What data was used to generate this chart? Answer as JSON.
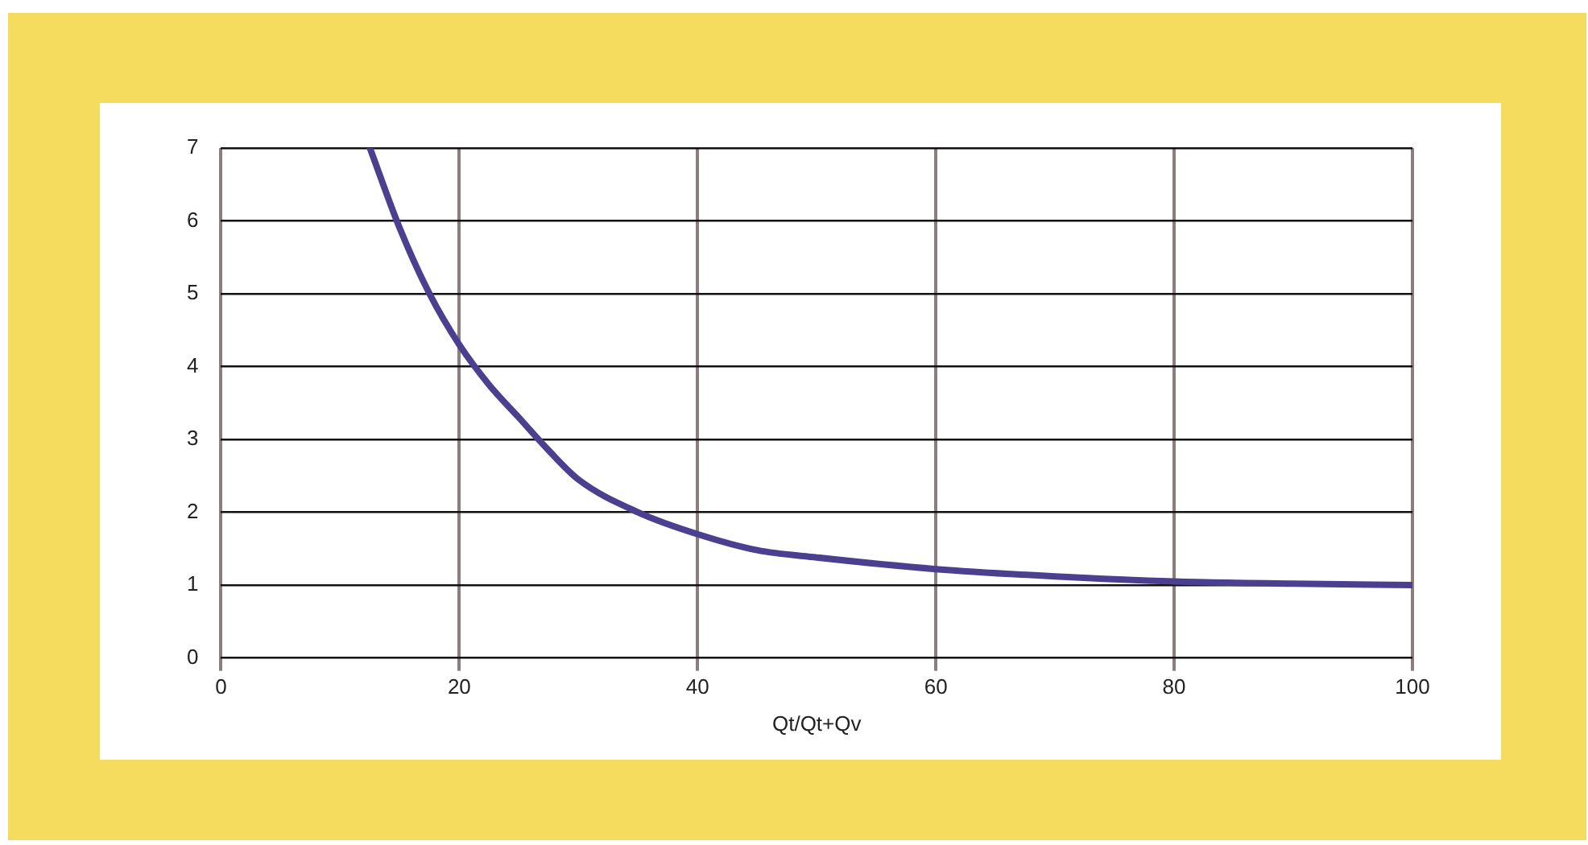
{
  "chart_data": {
    "type": "line",
    "xlabel": "Qt/Qt+Qv",
    "xlim": [
      0,
      100
    ],
    "xticks": [
      0,
      20,
      40,
      60,
      80,
      100
    ],
    "ylim": [
      0,
      7
    ],
    "yticks": [
      0,
      1,
      2,
      3,
      4,
      5,
      6,
      7
    ],
    "grid": true,
    "legend": false,
    "marker": "none",
    "line_style": "solid",
    "series": [
      {
        "color": "#4b3f8f",
        "x": [
          12.5,
          15,
          17.5,
          20,
          22.5,
          25,
          27.5,
          30,
          35,
          40,
          45,
          50,
          60,
          70,
          80,
          90,
          100
        ],
        "values": [
          7,
          5.9,
          5,
          4.3,
          3.75,
          3.3,
          2.85,
          2.45,
          2.0,
          1.7,
          1.48,
          1.38,
          1.22,
          1.12,
          1.05,
          1.02,
          1.0
        ]
      }
    ]
  }
}
